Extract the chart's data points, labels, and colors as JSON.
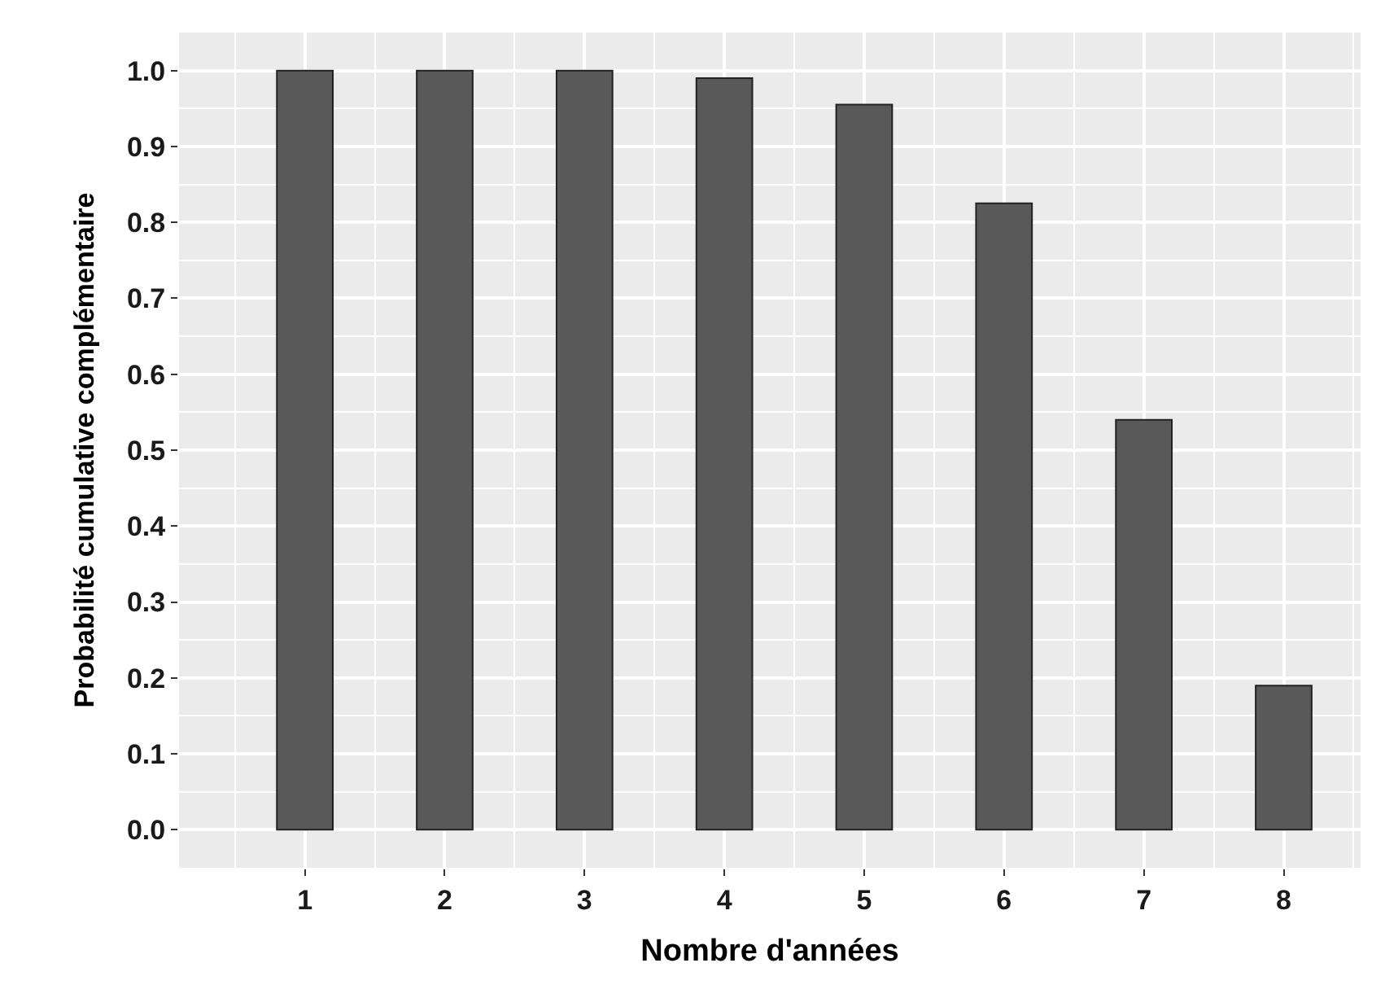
{
  "chart_data": {
    "type": "bar",
    "xlabel": "Nombre d'années",
    "ylabel": "Probabilité cumulative complémentaire",
    "x": [
      1,
      2,
      3,
      4,
      5,
      6,
      7,
      8
    ],
    "values": [
      1.0,
      1.0,
      1.0,
      0.99,
      0.955,
      0.825,
      0.54,
      0.19
    ],
    "color": "#595959",
    "xlim": [
      0.1,
      8.55
    ],
    "xticks": [
      1,
      2,
      3,
      4,
      5,
      6,
      7,
      8
    ],
    "ylim": [
      -0.05,
      1.05
    ],
    "yticks": [
      {
        "value": 0,
        "label": "0.0"
      },
      {
        "value": 0.1,
        "label": "0.1"
      },
      {
        "value": 0.2,
        "label": "0.2"
      },
      {
        "value": 0.3,
        "label": "0.3"
      },
      {
        "value": 0.4,
        "label": "0.4"
      },
      {
        "value": 0.5,
        "label": "0.5"
      },
      {
        "value": 0.6,
        "label": "0.6"
      },
      {
        "value": 0.7,
        "label": "0.7"
      },
      {
        "value": 0.8,
        "label": "0.8"
      },
      {
        "value": 0.9,
        "label": "0.9"
      },
      {
        "value": 1,
        "label": "1.0"
      }
    ],
    "grid": true
  }
}
